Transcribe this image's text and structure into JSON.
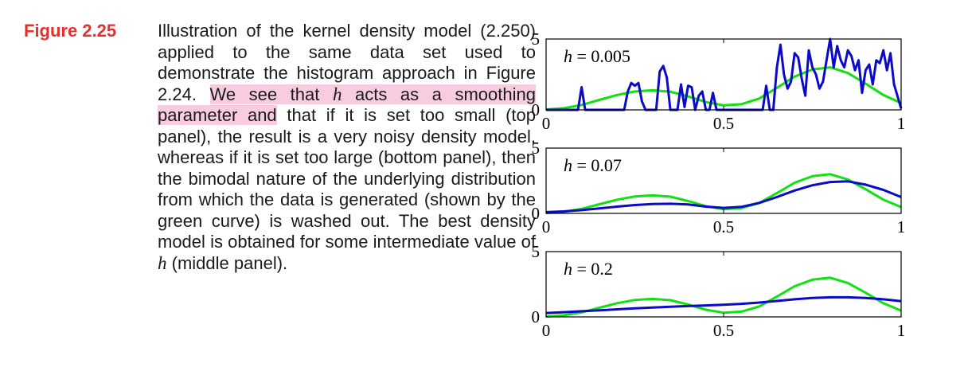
{
  "figure": {
    "label": "Figure 2.25",
    "caption": {
      "part1": "Illustration of the kernel density model (2.250) applied to the same data set used to demonstrate the histogram approach in Figure 2.24.",
      "highlight_a": "We see that",
      "h": "h",
      "highlight_b": "acts as a smoothing parameter and",
      "part2": "that if it is set too small (top panel), the result is a very noisy density model, whereas if it is set too large (bottom panel), then the bimodal nature of the underlying distribution from which the data is generated (shown by the green curve) is washed out. The best density model is obtained for some intermediate value of",
      "part3": "(middle panel)."
    }
  },
  "colors": {
    "label": "#e4312f",
    "highlight": "#f8cce0",
    "true_density": "#11e011",
    "kde": "#0a0ac8"
  },
  "chart_data": [
    {
      "type": "line",
      "annotation": "h = 0.005",
      "xlim": [
        0,
        1
      ],
      "ylim": [
        0,
        5
      ],
      "xticks": [
        "0",
        "0.5",
        "1"
      ],
      "yticks": [
        "0",
        "5"
      ],
      "series": [
        {
          "role": "true_density",
          "x": [
            0,
            0.05,
            0.1,
            0.15,
            0.2,
            0.25,
            0.3,
            0.35,
            0.4,
            0.45,
            0.5,
            0.55,
            0.6,
            0.65,
            0.7,
            0.75,
            0.8,
            0.85,
            0.9,
            0.95,
            1
          ],
          "y": [
            0.03,
            0.12,
            0.35,
            0.7,
            1.05,
            1.3,
            1.38,
            1.28,
            0.95,
            0.55,
            0.32,
            0.4,
            0.8,
            1.55,
            2.35,
            2.85,
            3.0,
            2.6,
            1.85,
            1.05,
            0.48
          ]
        },
        {
          "role": "kde",
          "x": [
            0,
            0.09,
            0.1,
            0.11,
            0.22,
            0.23,
            0.24,
            0.25,
            0.26,
            0.27,
            0.28,
            0.29,
            0.3,
            0.31,
            0.32,
            0.33,
            0.34,
            0.35,
            0.36,
            0.37,
            0.38,
            0.39,
            0.4,
            0.41,
            0.42,
            0.43,
            0.44,
            0.45,
            0.46,
            0.47,
            0.48,
            0.49,
            0.5,
            0.55,
            0.6,
            0.61,
            0.62,
            0.63,
            0.64,
            0.65,
            0.66,
            0.67,
            0.68,
            0.69,
            0.7,
            0.71,
            0.72,
            0.73,
            0.74,
            0.75,
            0.76,
            0.77,
            0.78,
            0.79,
            0.8,
            0.81,
            0.82,
            0.83,
            0.84,
            0.85,
            0.86,
            0.87,
            0.88,
            0.89,
            0.9,
            0.91,
            0.92,
            0.93,
            0.94,
            0.95,
            0.96,
            0.97,
            0.98,
            1
          ],
          "y": [
            0,
            0,
            1.6,
            0,
            0,
            1.3,
            1.9,
            1.7,
            1.9,
            0.6,
            0,
            0,
            0,
            0,
            2.7,
            3.1,
            2.3,
            0,
            0,
            0,
            1.8,
            0.2,
            1.7,
            1.6,
            0,
            1.0,
            1.3,
            0,
            0,
            1.2,
            0,
            0,
            0,
            0,
            0,
            0,
            1.7,
            0,
            0,
            3.0,
            4.6,
            2.5,
            1.5,
            2.0,
            4.0,
            3.7,
            2.2,
            1.0,
            4.2,
            3.0,
            2.5,
            1.5,
            2.0,
            3.5,
            5.0,
            3.0,
            4.5,
            3.5,
            3.0,
            4.2,
            3.8,
            2.8,
            3.5,
            1.2,
            2.8,
            3.2,
            1.8,
            3.5,
            3.3,
            4.2,
            2.8,
            4.0,
            1.8,
            0.1
          ]
        }
      ]
    },
    {
      "type": "line",
      "annotation": "h = 0.07",
      "xlim": [
        0,
        1
      ],
      "ylim": [
        0,
        5
      ],
      "xticks": [
        "0",
        "0.5",
        "1"
      ],
      "yticks": [
        "0",
        "5"
      ],
      "series": [
        {
          "role": "true_density",
          "x": [
            0,
            0.05,
            0.1,
            0.15,
            0.2,
            0.25,
            0.3,
            0.35,
            0.4,
            0.45,
            0.5,
            0.55,
            0.6,
            0.65,
            0.7,
            0.75,
            0.8,
            0.85,
            0.9,
            0.95,
            1
          ],
          "y": [
            0.03,
            0.12,
            0.35,
            0.7,
            1.05,
            1.3,
            1.38,
            1.28,
            0.95,
            0.55,
            0.32,
            0.4,
            0.8,
            1.55,
            2.35,
            2.85,
            3.0,
            2.6,
            1.85,
            1.05,
            0.48
          ]
        },
        {
          "role": "kde",
          "x": [
            0,
            0.05,
            0.1,
            0.15,
            0.2,
            0.25,
            0.3,
            0.35,
            0.4,
            0.45,
            0.5,
            0.55,
            0.6,
            0.65,
            0.7,
            0.75,
            0.8,
            0.85,
            0.9,
            0.95,
            1
          ],
          "y": [
            0.1,
            0.15,
            0.25,
            0.38,
            0.52,
            0.64,
            0.72,
            0.74,
            0.68,
            0.52,
            0.42,
            0.5,
            0.8,
            1.25,
            1.75,
            2.15,
            2.4,
            2.45,
            2.2,
            1.8,
            1.25
          ]
        }
      ]
    },
    {
      "type": "line",
      "annotation": "h = 0.2",
      "xlim": [
        0,
        1
      ],
      "ylim": [
        0,
        5
      ],
      "xticks": [
        "0",
        "0.5",
        "1"
      ],
      "yticks": [
        "0",
        "5"
      ],
      "series": [
        {
          "role": "true_density",
          "x": [
            0,
            0.05,
            0.1,
            0.15,
            0.2,
            0.25,
            0.3,
            0.35,
            0.4,
            0.45,
            0.5,
            0.55,
            0.6,
            0.65,
            0.7,
            0.75,
            0.8,
            0.85,
            0.9,
            0.95,
            1
          ],
          "y": [
            0.03,
            0.12,
            0.35,
            0.7,
            1.05,
            1.3,
            1.38,
            1.28,
            0.95,
            0.55,
            0.32,
            0.4,
            0.8,
            1.55,
            2.35,
            2.85,
            3.0,
            2.6,
            1.85,
            1.05,
            0.48
          ]
        },
        {
          "role": "kde",
          "x": [
            0,
            0.05,
            0.1,
            0.15,
            0.2,
            0.25,
            0.3,
            0.35,
            0.4,
            0.45,
            0.5,
            0.55,
            0.6,
            0.65,
            0.7,
            0.75,
            0.8,
            0.85,
            0.9,
            0.95,
            1
          ],
          "y": [
            0.3,
            0.36,
            0.43,
            0.5,
            0.58,
            0.65,
            0.72,
            0.78,
            0.83,
            0.88,
            0.93,
            1.0,
            1.1,
            1.22,
            1.35,
            1.45,
            1.5,
            1.5,
            1.45,
            1.35,
            1.2
          ]
        }
      ]
    }
  ]
}
